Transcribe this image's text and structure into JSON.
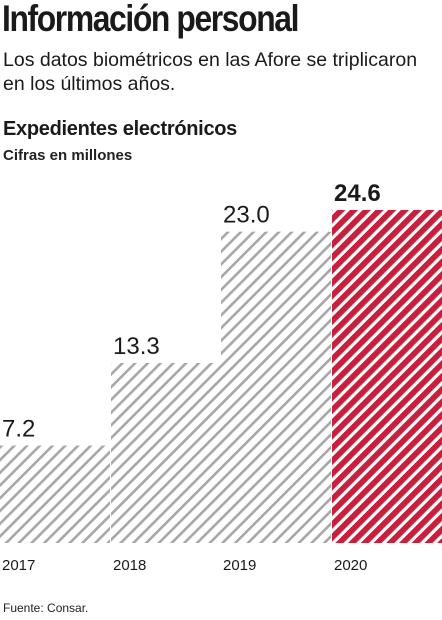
{
  "header": {
    "title": "Información personal",
    "subtitle": "Los datos biométricos en las Afore se triplicaron en los últimos años."
  },
  "chart": {
    "title": "Expedientes electrónicos",
    "subtitle": "Cifras en millones"
  },
  "footer": {
    "source": "Fuente: Consar."
  },
  "colors": {
    "gray_hatch": "#a7a7a7",
    "red_hatch": "#c8203c",
    "text": "#1a1a1a"
  },
  "chart_data": {
    "type": "bar",
    "categories": [
      "2017",
      "2018",
      "2019",
      "2020"
    ],
    "values": [
      7.2,
      13.3,
      23.0,
      24.6
    ],
    "value_labels": [
      "7.2",
      "13.3",
      "23.0",
      "24.6"
    ],
    "highlight_index": 3,
    "title": "Expedientes electrónicos",
    "subtitle": "Cifras en millones",
    "xlabel": "",
    "ylabel": "",
    "ylim": [
      0,
      24.6
    ],
    "grid": false,
    "legend": "none"
  }
}
